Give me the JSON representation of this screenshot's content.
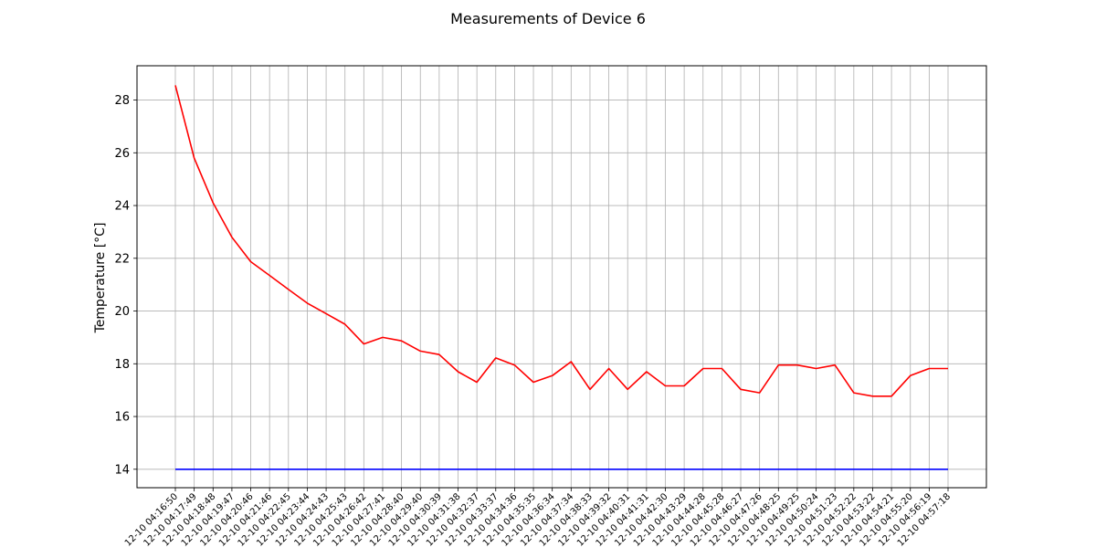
{
  "chart_data": {
    "type": "line",
    "title": "Measurements of Device 6",
    "xlabel": "",
    "ylabel": "Temperature [°C]",
    "ylim": [
      13.3,
      29.3
    ],
    "yticks": [
      14,
      16,
      18,
      20,
      22,
      24,
      26,
      28
    ],
    "grid": true,
    "categories": [
      "12-10 04:16:50",
      "12-10 04:17:49",
      "12-10 04:18:48",
      "12-10 04:19:47",
      "12-10 04:20:46",
      "12-10 04:21:46",
      "12-10 04:22:45",
      "12-10 04:23:44",
      "12-10 04:24:43",
      "12-10 04:25:43",
      "12-10 04:26:42",
      "12-10 04:27:41",
      "12-10 04:28:40",
      "12-10 04:29:40",
      "12-10 04:30:39",
      "12-10 04:31:38",
      "12-10 04:32:37",
      "12-10 04:33:37",
      "12-10 04:34:36",
      "12-10 04:35:35",
      "12-10 04:36:34",
      "12-10 04:37:34",
      "12-10 04:38:33",
      "12-10 04:39:32",
      "12-10 04:40:31",
      "12-10 04:41:31",
      "12-10 04:42:30",
      "12-10 04:43:29",
      "12-10 04:44:28",
      "12-10 04:45:28",
      "12-10 04:46:27",
      "12-10 04:47:26",
      "12-10 04:48:25",
      "12-10 04:49:25",
      "12-10 04:50:24",
      "12-10 04:51:23",
      "12-10 04:52:22",
      "12-10 04:53:22",
      "12-10 04:54:21",
      "12-10 04:55:20",
      "12-10 04:56:19",
      "12-10 04:57:18"
    ],
    "series": [
      {
        "color": "#ff0000",
        "values": [
          28.56,
          25.8,
          24.1,
          22.8,
          21.87,
          21.35,
          20.82,
          20.3,
          19.9,
          19.5,
          18.75,
          19.0,
          18.87,
          18.48,
          18.35,
          17.7,
          17.3,
          18.22,
          17.95,
          17.3,
          17.55,
          18.08,
          17.03,
          17.82,
          17.03,
          17.7,
          17.16,
          17.16,
          17.82,
          17.82,
          17.03,
          16.9,
          17.95,
          17.95,
          17.82,
          17.95,
          16.9,
          16.77,
          16.77,
          17.55,
          17.82,
          17.82
        ]
      },
      {
        "color": "#0000ff",
        "values": [
          14,
          14,
          14,
          14,
          14,
          14,
          14,
          14,
          14,
          14,
          14,
          14,
          14,
          14,
          14,
          14,
          14,
          14,
          14,
          14,
          14,
          14,
          14,
          14,
          14,
          14,
          14,
          14,
          14,
          14,
          14,
          14,
          14,
          14,
          14,
          14,
          14,
          14,
          14,
          14,
          14,
          14
        ]
      }
    ]
  }
}
